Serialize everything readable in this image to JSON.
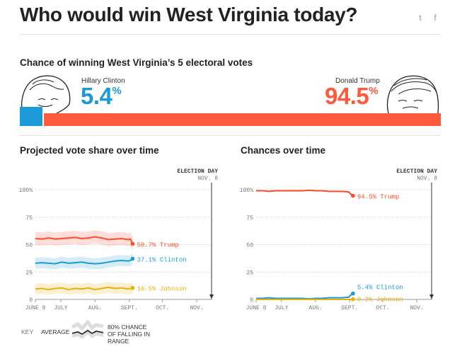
{
  "header": {
    "title": "Who would win West Virginia today?",
    "share_icons": [
      "twitter-icon",
      "facebook-icon"
    ],
    "twitter_glyph": "t",
    "facebook_glyph": "f"
  },
  "summary": {
    "heading": "Chance of winning West Virginia’s 5 electoral votes",
    "clinton": {
      "name": "Hillary Clinton",
      "pct": "5.4",
      "suffix": "%",
      "share": 5.4,
      "color": "#1a9ad6"
    },
    "trump": {
      "name": "Donald Trump",
      "pct": "94.5",
      "suffix": "%",
      "share": 94.5,
      "color": "#ff5a3c"
    }
  },
  "colors": {
    "clinton": "#1a9ad6",
    "trump": "#ff4a2a",
    "johnson": "#eaaf08",
    "axis": "#999999"
  },
  "key": {
    "label": "KEY",
    "average": "AVERAGE",
    "range": [
      "80% CHANCE",
      "OF FALLING IN",
      "RANGE"
    ]
  },
  "chart_data": [
    {
      "type": "line",
      "title": "Projected vote share over time",
      "election_day": [
        "ELECTION DAY",
        "NOV. 8"
      ],
      "x_ticks": [
        "JUNE 8",
        "JULY",
        "AUG.",
        "SEPT.",
        "OCT.",
        "NOV."
      ],
      "y_ticks": [
        "100%",
        "75",
        "50",
        "25",
        "0"
      ],
      "ylim": [
        0,
        100
      ],
      "grid": true,
      "x_days": [
        0,
        6,
        12,
        18,
        24,
        30,
        36,
        42,
        48,
        54,
        60,
        66,
        72,
        78,
        84,
        86,
        88
      ],
      "series": [
        {
          "name": "Trump",
          "label": "50.7% Trump",
          "final": 50.7,
          "color": "#ff4a2a",
          "band": 6,
          "values": [
            55.5,
            55,
            56,
            55,
            55.5,
            56,
            56.5,
            55.5,
            56,
            57,
            56,
            54.5,
            55,
            55.5,
            54.5,
            55,
            50.7
          ]
        },
        {
          "name": "Clinton",
          "label": "37.1% Clinton",
          "final": 37.1,
          "color": "#1a9ad6",
          "band": 5,
          "values": [
            33,
            33.5,
            33,
            32.5,
            34,
            33,
            33.5,
            34,
            33,
            32.5,
            33,
            34,
            35,
            35.5,
            35,
            35.5,
            37.1
          ]
        },
        {
          "name": "Johnson",
          "label": "10.5% Johnson",
          "final": 10.5,
          "color": "#eaaf08",
          "band": 5,
          "values": [
            9.5,
            10,
            9,
            10,
            10.5,
            9,
            10,
            9.5,
            10.5,
            9,
            10,
            11,
            10,
            10.5,
            9.5,
            10,
            10.5
          ]
        }
      ]
    },
    {
      "type": "line",
      "title": "Chances over time",
      "election_day": [
        "ELECTION DAY",
        "NOV. 8"
      ],
      "x_ticks": [
        "JUNE 8",
        "JULY",
        "AUG.",
        "SEPT.",
        "OCT.",
        "NOV."
      ],
      "y_ticks": [
        "100%",
        "75",
        "50",
        "25",
        "0"
      ],
      "ylim": [
        0,
        100
      ],
      "grid": true,
      "x_days": [
        0,
        6,
        12,
        18,
        24,
        30,
        36,
        42,
        48,
        54,
        60,
        66,
        72,
        78,
        84,
        86,
        88
      ],
      "series": [
        {
          "name": "Trump",
          "label": "94.5% Trump",
          "final": 94.5,
          "color": "#ff4a2a",
          "values": [
            99,
            99,
            98.5,
            99,
            99,
            99,
            99,
            99,
            99.5,
            99,
            99,
            98.5,
            98.5,
            98.5,
            98,
            96,
            94.5
          ]
        },
        {
          "name": "Clinton",
          "label": "5.4% Clinton",
          "final": 5.4,
          "color": "#1a9ad6",
          "values": [
            1,
            1,
            1.5,
            1,
            1,
            1,
            1,
            1,
            0.5,
            1,
            1,
            1.5,
            1.5,
            1.5,
            2,
            4,
            5.4
          ]
        },
        {
          "name": "Johnson",
          "label": "0.2% Johnson",
          "final": 0.2,
          "color": "#eaaf08",
          "values": [
            0,
            0,
            0,
            0,
            0,
            0,
            0,
            0,
            0,
            0,
            0,
            0,
            0,
            0,
            0,
            0,
            0.2
          ]
        }
      ]
    }
  ]
}
